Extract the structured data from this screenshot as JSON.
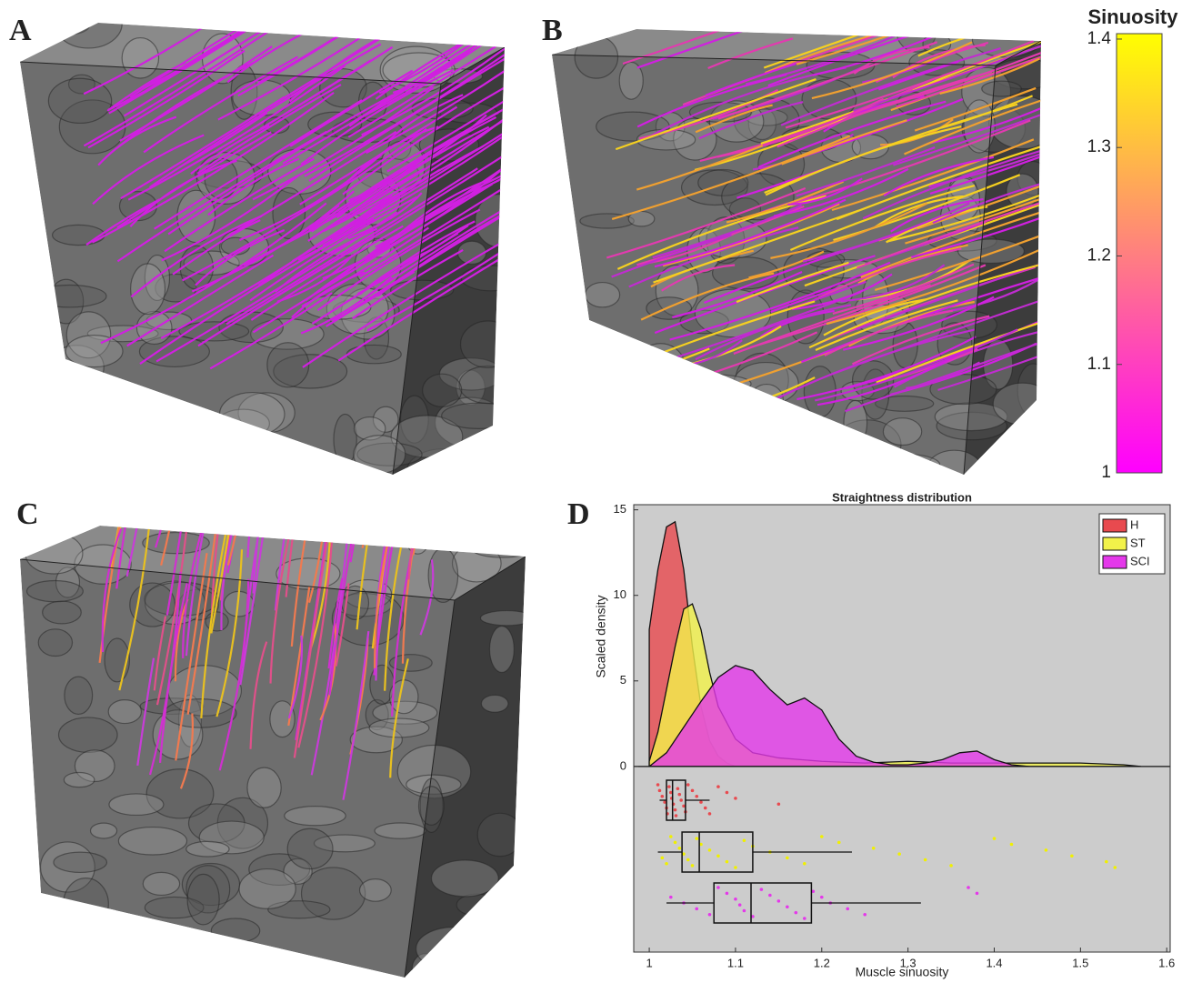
{
  "panel_labels": [
    "A",
    "B",
    "C",
    "D"
  ],
  "colorbar": {
    "label": "Sinuosity",
    "lim": [
      1,
      1.405
    ],
    "ticks": [
      1,
      1.1,
      1.2,
      1.3,
      1.4
    ],
    "colors": [
      "#ff00ff",
      "#ffff00"
    ]
  },
  "chart_data": {
    "type": "density",
    "title": "Straightness distribution",
    "xlabel": "Muscle sinuosity",
    "ylabel": "Scaled density",
    "xlim": [
      0.982,
      1.604
    ],
    "ylim": [
      -10.85,
      15.3
    ],
    "xticks": [
      1,
      1.1,
      1.2,
      1.3,
      1.4,
      1.5,
      1.6
    ],
    "yticks": [
      0,
      5,
      10,
      15
    ],
    "legend": "upper right",
    "background": "#cccccc",
    "series": [
      {
        "name": "H",
        "color": "#e84a4f",
        "x": [
          1,
          1.01,
          1.02,
          1.03,
          1.04,
          1.05,
          1.06,
          1.07,
          1.08,
          1.09,
          1.1
        ],
        "values": [
          8,
          11.5,
          14,
          14.3,
          11.5,
          7,
          3.5,
          1.5,
          0.6,
          0.2,
          0
        ],
        "box": {
          "whislo": 1.012,
          "q1": 1.02,
          "med": 1.027,
          "q3": 1.042,
          "whishi": 1.07
        },
        "points": [
          1.01,
          1.012,
          1.015,
          1.018,
          1.02,
          1.021,
          1.023,
          1.025,
          1.026,
          1.028,
          1.03,
          1.031,
          1.033,
          1.035,
          1.037,
          1.04,
          1.042,
          1.045,
          1.05,
          1.055,
          1.06,
          1.065,
          1.07,
          1.08,
          1.09,
          1.1,
          1.15
        ]
      },
      {
        "name": "ST",
        "color": "#f2f24a",
        "x": [
          1,
          1.01,
          1.02,
          1.03,
          1.04,
          1.05,
          1.06,
          1.07,
          1.08,
          1.1,
          1.12,
          1.15,
          1.2,
          1.25,
          1.3,
          1.35,
          1.4,
          1.45,
          1.5,
          1.55,
          1.57
        ],
        "values": [
          0.3,
          2,
          4.5,
          7,
          9.2,
          9.5,
          8,
          5.5,
          3.5,
          1.6,
          0.8,
          0.5,
          0.3,
          0.2,
          0.3,
          0.2,
          0.2,
          0.2,
          0.2,
          0.1,
          0
        ],
        "box": {
          "whislo": 1.01,
          "q1": 1.038,
          "med": 1.058,
          "q3": 1.12,
          "whishi": 1.235
        },
        "points": [
          1.015,
          1.02,
          1.025,
          1.03,
          1.035,
          1.04,
          1.045,
          1.05,
          1.055,
          1.06,
          1.07,
          1.08,
          1.09,
          1.1,
          1.11,
          1.12,
          1.14,
          1.16,
          1.18,
          1.2,
          1.22,
          1.26,
          1.29,
          1.32,
          1.35,
          1.4,
          1.42,
          1.46,
          1.49,
          1.53,
          1.54
        ]
      },
      {
        "name": "SCI",
        "color": "#e438ea",
        "x": [
          1,
          1.02,
          1.04,
          1.06,
          1.08,
          1.1,
          1.12,
          1.14,
          1.16,
          1.18,
          1.2,
          1.22,
          1.24,
          1.26,
          1.28,
          1.3,
          1.32,
          1.34,
          1.36,
          1.38,
          1.4,
          1.42,
          1.44
        ],
        "values": [
          0,
          0.8,
          2.3,
          3.8,
          5.2,
          5.9,
          5.6,
          4.5,
          3.6,
          4,
          3.3,
          1.6,
          0.6,
          0.25,
          0.1,
          0.1,
          0.2,
          0.4,
          0.8,
          0.9,
          0.4,
          0.1,
          0
        ],
        "box": {
          "whislo": 1.02,
          "q1": 1.075,
          "med": 1.118,
          "q3": 1.188,
          "whishi": 1.315
        },
        "points": [
          1.025,
          1.04,
          1.055,
          1.07,
          1.08,
          1.09,
          1.1,
          1.105,
          1.11,
          1.12,
          1.13,
          1.14,
          1.15,
          1.16,
          1.17,
          1.18,
          1.19,
          1.2,
          1.21,
          1.23,
          1.25,
          1.37,
          1.38
        ]
      }
    ]
  }
}
